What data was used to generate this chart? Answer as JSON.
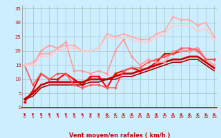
{
  "x": [
    0,
    1,
    2,
    3,
    4,
    5,
    6,
    7,
    8,
    9,
    10,
    11,
    12,
    13,
    14,
    15,
    16,
    17,
    18,
    19,
    20,
    21,
    22,
    23
  ],
  "series": [
    {
      "color": "#ff0000",
      "linewidth": 1.5,
      "marker": "D",
      "markersize": 2.0,
      "y": [
        2,
        6,
        12,
        10,
        10,
        12,
        10,
        8,
        11,
        11,
        7,
        12,
        13,
        14,
        13,
        14,
        16,
        19,
        19,
        20,
        20,
        21,
        17,
        17
      ]
    },
    {
      "color": "#cc0000",
      "linewidth": 2.0,
      "marker": null,
      "markersize": 0,
      "y": [
        3,
        5,
        8,
        9,
        9,
        9,
        9,
        9,
        10,
        10,
        10,
        11,
        12,
        12,
        13,
        14,
        15,
        16,
        17,
        17,
        18,
        18,
        16,
        14
      ]
    },
    {
      "color": "#aa0000",
      "linewidth": 1.2,
      "marker": null,
      "markersize": 0,
      "y": [
        3,
        4,
        7,
        8,
        8,
        8,
        8,
        8,
        9,
        9,
        10,
        10,
        11,
        11,
        12,
        13,
        14,
        15,
        16,
        16,
        17,
        17,
        15,
        13
      ]
    },
    {
      "color": "#ff9999",
      "linewidth": 1.2,
      "marker": "D",
      "markersize": 2.0,
      "y": [
        15,
        15,
        20,
        22,
        21,
        23,
        13,
        13,
        12,
        13,
        12,
        20,
        24,
        18,
        15,
        17,
        16,
        16,
        20,
        20,
        20,
        21,
        17,
        15
      ]
    },
    {
      "color": "#ff5555",
      "linewidth": 1.2,
      "marker": "D",
      "markersize": 2.0,
      "y": [
        15,
        8,
        12,
        10,
        12,
        12,
        8,
        7,
        8,
        8,
        7,
        7,
        13,
        14,
        14,
        16,
        17,
        18,
        19,
        21,
        21,
        20,
        17,
        17
      ]
    },
    {
      "color": "#ffaaaa",
      "linewidth": 1.2,
      "marker": "D",
      "markersize": 2.0,
      "y": [
        15,
        16,
        19,
        19,
        21,
        22,
        22,
        20,
        20,
        21,
        26,
        25,
        26,
        25,
        24,
        24,
        26,
        27,
        32,
        31,
        31,
        29,
        30,
        25
      ]
    },
    {
      "color": "#ffcccc",
      "linewidth": 1.2,
      "marker": "D",
      "markersize": 1.8,
      "y": [
        15,
        15,
        18,
        18,
        20,
        21,
        21,
        20,
        20,
        21,
        25,
        24,
        25,
        24,
        23,
        23,
        25,
        26,
        29,
        29,
        29,
        27,
        28,
        24
      ]
    }
  ],
  "xlabel": "Vent moyen/en rafales ( km/h )",
  "xlim": [
    -0.3,
    23.3
  ],
  "ylim": [
    0,
    36
  ],
  "yticks": [
    0,
    5,
    10,
    15,
    20,
    25,
    30,
    35
  ],
  "xticks": [
    0,
    1,
    2,
    3,
    4,
    5,
    6,
    7,
    8,
    9,
    10,
    11,
    12,
    13,
    14,
    15,
    16,
    17,
    18,
    19,
    20,
    21,
    22,
    23
  ],
  "background_color": "#cceeff",
  "grid_color": "#aacccc",
  "tick_color": "#cc0000",
  "label_color": "#cc0000",
  "arrow_color": "#cc0000",
  "spine_bottom_color": "#cc0000"
}
